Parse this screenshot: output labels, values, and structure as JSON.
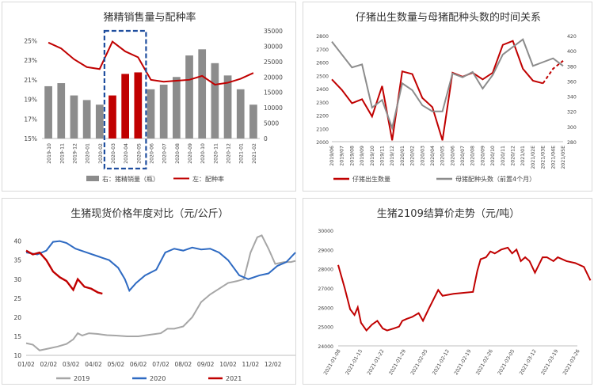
{
  "chart_data": [
    {
      "id": "c1",
      "type": "bar+line",
      "title": "猪精销售量与配种率",
      "categories": [
        "2019-10",
        "2019-11",
        "2019-12",
        "2020-01",
        "2020-02",
        "2020-03",
        "2020-04",
        "2020-05",
        "2020-06",
        "2020-07",
        "2020-08",
        "2020-09",
        "2020-10",
        "2020-11",
        "2020-12",
        "2021-01",
        "2021-02"
      ],
      "bar_series": {
        "name": "右：猪精销量（瓶）",
        "values": [
          17000,
          18000,
          14000,
          12500,
          11000,
          14000,
          21000,
          21500,
          16000,
          17500,
          20000,
          27000,
          29000,
          24500,
          20500,
          16000,
          11000
        ],
        "color": "#8c8c8c",
        "highlight_color": "#c00000",
        "highlight_indices": [
          5,
          6,
          7
        ]
      },
      "line_series": {
        "name": "左：配种率",
        "values": [
          24.8,
          24.2,
          23.1,
          22.3,
          22.1,
          24.9,
          23.9,
          23.3,
          21.0,
          20.8,
          20.9,
          21.0,
          21.4,
          20.5,
          20.7,
          21.1,
          21.7
        ],
        "color": "#c00000"
      },
      "y_left": {
        "ticks": [
          "25%",
          "23%",
          "21%",
          "19%",
          "17%",
          "15%"
        ],
        "min": 15,
        "max": 26
      },
      "y_right": {
        "ticks": [
          "35000",
          "30000",
          "25000",
          "20000",
          "15000",
          "10000",
          "5000",
          "0"
        ],
        "min": 0,
        "max": 35000
      },
      "highlight_box": {
        "from_index": 5,
        "to_index": 7,
        "color": "#1f4e9e"
      }
    },
    {
      "id": "c2",
      "type": "line",
      "title": "仔猪出生数量与母猪配种头数的时间关系",
      "categories": [
        "2019/06",
        "2019/07",
        "2019/08",
        "2019/09",
        "2019/10",
        "2019/11",
        "2019/12",
        "2020/01",
        "2020/02",
        "2020/03",
        "2020/04",
        "2020/05",
        "2020/06",
        "2020/07",
        "2020/08",
        "2020/09",
        "2020/10",
        "2020/11",
        "2020/12",
        "2021/01",
        "2021/02E",
        "2021/03E",
        "2021/04E",
        "2021/05E"
      ],
      "series": [
        {
          "name": "仔猪出生数量",
          "axis": "left",
          "color": "#c00000",
          "values": [
            2470,
            2390,
            2290,
            2320,
            2190,
            2420,
            2010,
            2530,
            2510,
            2330,
            2260,
            2010,
            2520,
            2490,
            2520,
            2470,
            2520,
            2730,
            2760,
            2550,
            2460,
            2440,
            2550,
            2610
          ],
          "dashed_from_index": 21
        },
        {
          "name": "母猪配种头数（前置4个月）",
          "axis": "right",
          "color": "#8c8c8c",
          "values": [
            412,
            395,
            378,
            382,
            325,
            335,
            298,
            357,
            348,
            328,
            320,
            320,
            370,
            365,
            372,
            350,
            368,
            395,
            405,
            415,
            380,
            385,
            390,
            380
          ]
        }
      ],
      "y_left": {
        "ticks": [
          "2800",
          "2700",
          "2600",
          "2500",
          "2400",
          "2300",
          "2200",
          "2100",
          "2000"
        ],
        "min": 2000,
        "max": 2800
      },
      "y_right": {
        "ticks": [
          "420",
          "400",
          "380",
          "360",
          "340",
          "320",
          "300",
          "280"
        ],
        "min": 280,
        "max": 420
      }
    },
    {
      "id": "c3",
      "type": "line",
      "title": "生猪现货价格年度对比（元/公斤）",
      "x_ticks": [
        "01/02",
        "02/02",
        "03/02",
        "04/02",
        "05/02",
        "06/02",
        "07/02",
        "08/02",
        "09/02",
        "10/02",
        "11/02",
        "12/02"
      ],
      "x_range": [
        0,
        12
      ],
      "y_ticks": [
        "40",
        "35",
        "30",
        "25",
        "20",
        "15",
        "10"
      ],
      "y_range": [
        10,
        42
      ],
      "series": [
        {
          "name": "2019",
          "color": "#a6a6a6",
          "points": [
            [
              0,
              13.2
            ],
            [
              0.3,
              12.8
            ],
            [
              0.6,
              11.3
            ],
            [
              1.0,
              11.8
            ],
            [
              1.4,
              12.3
            ],
            [
              1.8,
              13.0
            ],
            [
              2.1,
              14.2
            ],
            [
              2.3,
              15.8
            ],
            [
              2.5,
              15.2
            ],
            [
              2.8,
              15.8
            ],
            [
              3.2,
              15.6
            ],
            [
              3.6,
              15.3
            ],
            [
              4.0,
              15.2
            ],
            [
              4.5,
              15.0
            ],
            [
              5.0,
              15.0
            ],
            [
              5.5,
              15.4
            ],
            [
              6.0,
              15.8
            ],
            [
              6.3,
              17.0
            ],
            [
              6.6,
              17.0
            ],
            [
              7.0,
              17.6
            ],
            [
              7.4,
              20.0
            ],
            [
              7.8,
              24.0
            ],
            [
              8.2,
              26.0
            ],
            [
              8.6,
              27.5
            ],
            [
              9.0,
              29.0
            ],
            [
              9.4,
              29.5
            ],
            [
              9.7,
              30.0
            ],
            [
              10.0,
              37.0
            ],
            [
              10.3,
              41.0
            ],
            [
              10.5,
              41.5
            ],
            [
              10.8,
              38.0
            ],
            [
              11.1,
              34.0
            ],
            [
              11.5,
              34.5
            ],
            [
              11.8,
              34.5
            ],
            [
              12.0,
              34.8
            ]
          ]
        },
        {
          "name": "2020",
          "color": "#2e6ac2",
          "points": [
            [
              0,
              37.0
            ],
            [
              0.5,
              36.5
            ],
            [
              0.9,
              37.5
            ],
            [
              1.2,
              39.8
            ],
            [
              1.5,
              40.0
            ],
            [
              1.8,
              39.5
            ],
            [
              2.2,
              38.0
            ],
            [
              2.7,
              37.0
            ],
            [
              3.2,
              36.0
            ],
            [
              3.7,
              35.0
            ],
            [
              4.1,
              33.0
            ],
            [
              4.4,
              30.0
            ],
            [
              4.6,
              27.0
            ],
            [
              4.9,
              29.0
            ],
            [
              5.3,
              31.0
            ],
            [
              5.8,
              32.5
            ],
            [
              6.2,
              37.0
            ],
            [
              6.6,
              38.0
            ],
            [
              7.0,
              37.5
            ],
            [
              7.4,
              38.3
            ],
            [
              7.8,
              37.8
            ],
            [
              8.2,
              38.0
            ],
            [
              8.6,
              37.0
            ],
            [
              9.0,
              35.0
            ],
            [
              9.5,
              31.0
            ],
            [
              9.9,
              30.0
            ],
            [
              10.4,
              31.0
            ],
            [
              10.8,
              31.5
            ],
            [
              11.2,
              33.5
            ],
            [
              11.6,
              34.5
            ],
            [
              12.0,
              37.0
            ]
          ]
        },
        {
          "name": "2021",
          "color": "#c00000",
          "points": [
            [
              0,
              37.5
            ],
            [
              0.3,
              36.5
            ],
            [
              0.6,
              37.0
            ],
            [
              0.9,
              35.0
            ],
            [
              1.2,
              32.0
            ],
            [
              1.5,
              30.5
            ],
            [
              1.8,
              29.5
            ],
            [
              2.1,
              27.2
            ],
            [
              2.3,
              30.0
            ],
            [
              2.6,
              28.0
            ],
            [
              2.9,
              27.5
            ],
            [
              3.2,
              26.5
            ],
            [
              3.4,
              26.2
            ]
          ]
        }
      ]
    },
    {
      "id": "c4",
      "type": "line",
      "title": "生猪2109结算价走势（元/吨）",
      "x_ticks": [
        "2021-01-08",
        "2021-01-15",
        "2021-01-22",
        "2021-01-29",
        "2021-02-05",
        "2021-02-12",
        "2021-02-19",
        "2021-02-26",
        "2021-03-05",
        "2021-03-12",
        "2021-03-19",
        "2021-03-26"
      ],
      "y_ticks": [
        "30000",
        "29000",
        "28000",
        "27000",
        "26000",
        "25000",
        "24000"
      ],
      "y_range": [
        24000,
        30000
      ],
      "series": [
        {
          "name": "生猪2109结算价",
          "color": "#c00000",
          "points": [
            [
              0,
              28200
            ],
            [
              0.3,
              27000
            ],
            [
              0.55,
              25900
            ],
            [
              0.75,
              25600
            ],
            [
              0.9,
              26000
            ],
            [
              1.05,
              25200
            ],
            [
              1.3,
              24800
            ],
            [
              1.55,
              25100
            ],
            [
              1.8,
              25300
            ],
            [
              2.05,
              24900
            ],
            [
              2.25,
              24800
            ],
            [
              2.55,
              24900
            ],
            [
              2.8,
              25000
            ],
            [
              2.95,
              25300
            ],
            [
              3.15,
              25400
            ],
            [
              3.4,
              25500
            ],
            [
              3.55,
              25600
            ],
            [
              3.7,
              25700
            ],
            [
              3.9,
              25300
            ],
            [
              4.2,
              26000
            ],
            [
              4.6,
              26900
            ],
            [
              4.8,
              26600
            ],
            [
              5.3,
              26700
            ],
            [
              6.2,
              26800
            ],
            [
              6.4,
              27900
            ],
            [
              6.55,
              28500
            ],
            [
              6.8,
              28600
            ],
            [
              7.0,
              28900
            ],
            [
              7.2,
              28800
            ],
            [
              7.5,
              29000
            ],
            [
              7.8,
              29100
            ],
            [
              8.0,
              28800
            ],
            [
              8.2,
              29000
            ],
            [
              8.4,
              28400
            ],
            [
              8.6,
              28600
            ],
            [
              8.8,
              28400
            ],
            [
              9.05,
              27800
            ],
            [
              9.4,
              28600
            ],
            [
              9.6,
              28600
            ],
            [
              9.9,
              28400
            ],
            [
              10.1,
              28600
            ],
            [
              10.5,
              28400
            ],
            [
              10.9,
              28300
            ],
            [
              11.3,
              28100
            ],
            [
              11.6,
              27400
            ]
          ]
        }
      ]
    }
  ]
}
